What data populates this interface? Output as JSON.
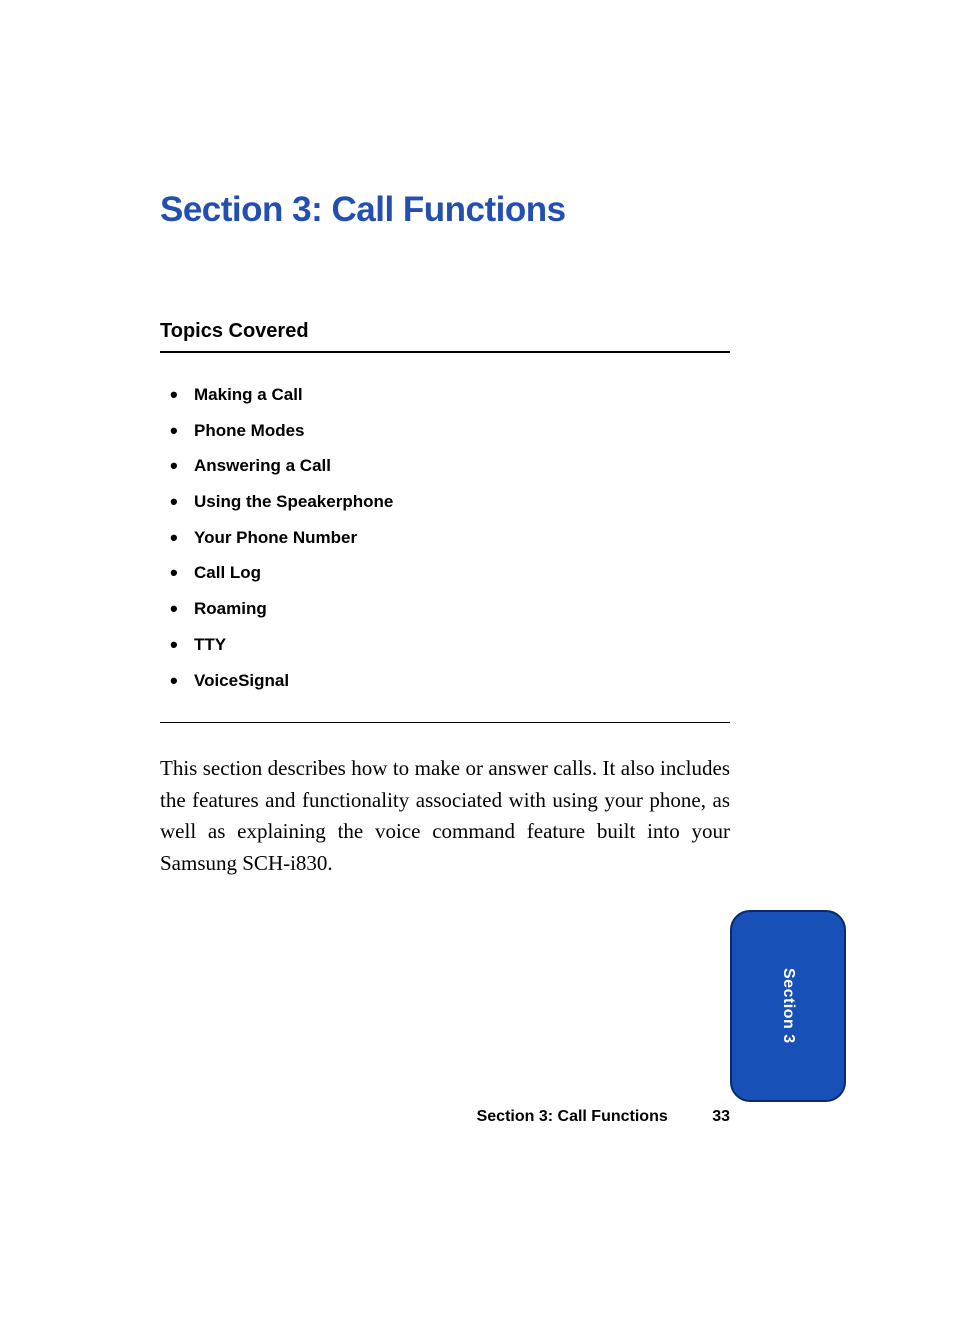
{
  "colors": {
    "title": "#224fb0",
    "tab_bg": "#1751b8",
    "tab_border": "#0b2a6b",
    "text": "#000000",
    "background": "#ffffff"
  },
  "section": {
    "title": "Section 3: Call Functions"
  },
  "topics": {
    "heading": "Topics Covered",
    "items": [
      "Making a Call",
      "Phone Modes",
      "Answering a Call",
      "Using the Speakerphone",
      "Your Phone Number",
      "Call Log",
      "Roaming",
      "TTY",
      "VoiceSignal"
    ]
  },
  "body": {
    "paragraph": "This section describes how to make or answer calls. It also includes the features and functionality associated with using your phone, as well as explaining the voice command feature built into your Samsung SCH-i830."
  },
  "footer": {
    "label": "Section 3: Call Functions",
    "page": "33"
  },
  "tab": {
    "label": "Section 3"
  }
}
